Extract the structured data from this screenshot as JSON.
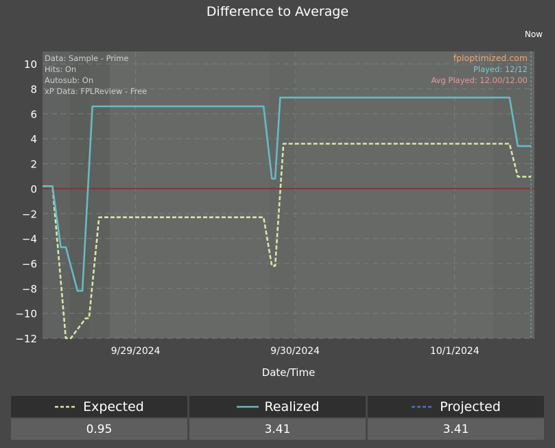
{
  "chart_data": {
    "type": "line",
    "title": "Difference to Average",
    "xlabel": "Date/Time",
    "ylabel": "",
    "ylim": [
      -12,
      11
    ],
    "yticks": [
      10,
      8,
      6,
      4,
      2,
      0,
      -2,
      -4,
      -6,
      -8,
      -10,
      -12
    ],
    "xlim": [
      "2024-09-28T10:00",
      "2024-10-01T12:00"
    ],
    "xticks": [
      {
        "at": "2024-09-29T00:00",
        "label": "9/29/2024"
      },
      {
        "at": "2024-09-30T00:00",
        "label": "9/30/2024"
      },
      {
        "at": "2024-10-01T00:00",
        "label": "10/1/2024"
      }
    ],
    "now_label": "Now",
    "now_at": "2024-10-01T11:30",
    "grid": true,
    "zero_line": true,
    "series": [
      {
        "name": "Expected",
        "style": "dashed",
        "color": "#d5e8a8",
        "points": [
          [
            "2024-09-28T10:00",
            0.2
          ],
          [
            "2024-09-28T11:30",
            0.2
          ],
          [
            "2024-09-28T13:30",
            -12.0
          ],
          [
            "2024-09-28T14:15",
            -12.0
          ],
          [
            "2024-09-28T16:30",
            -10.4
          ],
          [
            "2024-09-28T17:00",
            -10.4
          ],
          [
            "2024-09-28T18:30",
            -2.3
          ],
          [
            "2024-09-29T19:15",
            -2.3
          ],
          [
            "2024-09-29T20:30",
            -6.2
          ],
          [
            "2024-09-29T21:00",
            -6.2
          ],
          [
            "2024-09-29T22:15",
            3.6
          ],
          [
            "2024-10-01T08:15",
            3.6
          ],
          [
            "2024-10-01T09:30",
            0.95
          ],
          [
            "2024-10-01T11:30",
            0.95
          ]
        ]
      },
      {
        "name": "Realized",
        "style": "solid",
        "color": "#64bcc4",
        "points": [
          [
            "2024-09-28T10:00",
            0.2
          ],
          [
            "2024-09-28T11:30",
            0.2
          ],
          [
            "2024-09-28T12:45",
            -4.7
          ],
          [
            "2024-09-28T13:30",
            -4.7
          ],
          [
            "2024-09-28T15:15",
            -8.2
          ],
          [
            "2024-09-28T16:00",
            -8.2
          ],
          [
            "2024-09-28T17:30",
            6.6
          ],
          [
            "2024-09-29T19:15",
            6.6
          ],
          [
            "2024-09-29T20:30",
            0.8
          ],
          [
            "2024-09-29T21:00",
            0.8
          ],
          [
            "2024-09-29T21:45",
            7.3
          ],
          [
            "2024-10-01T08:15",
            7.3
          ],
          [
            "2024-10-01T09:30",
            3.41
          ],
          [
            "2024-10-01T11:30",
            3.41
          ]
        ]
      },
      {
        "name": "Projected",
        "style": "dashed",
        "color": "#5570c0",
        "points": []
      }
    ],
    "annotations_left": [
      "Data: Sample - Prime",
      "Hits: On",
      "Autosub: On",
      "xP Data: FPLReview - Free"
    ],
    "annotations_right": [
      {
        "text": "fploptimized.com",
        "color": "#e8a878"
      },
      {
        "text": "Played: 12/12",
        "color": "#7cc8d4"
      },
      {
        "text": "Avg Played: 12.00/12.00",
        "color": "#e49a9a"
      }
    ]
  },
  "summary": [
    {
      "label": "Expected",
      "value": "0.95",
      "color": "#d5e8a8",
      "style": "dashed"
    },
    {
      "label": "Realized",
      "value": "3.41",
      "color": "#64bcc4",
      "style": "solid"
    },
    {
      "label": "Projected",
      "value": "3.41",
      "color": "#5570c0",
      "style": "dashed"
    }
  ]
}
